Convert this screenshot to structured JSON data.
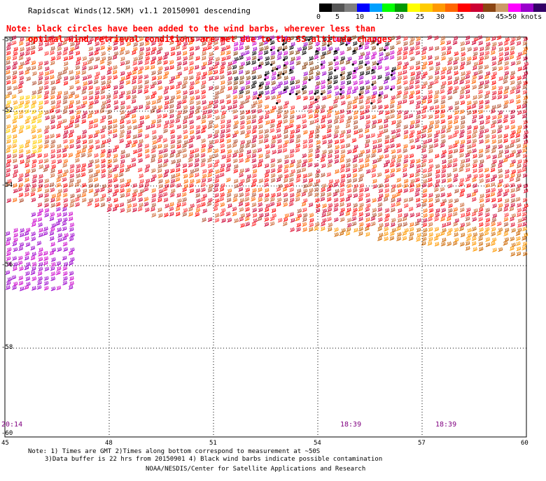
{
  "header": {
    "title": "Rapidscat Winds(12.5KM) v1.1 20150901 descending",
    "note_line1": "Note: black circles have been added to the wind barbs, wherever less than",
    "note_line2": "optimal wind retrieval conditions are met due to the SS altitude changes"
  },
  "color_scale": {
    "colors": [
      "#000000",
      "#555555",
      "#7f7f7f",
      "#0000ff",
      "#00a0ff",
      "#00ff00",
      "#009900",
      "#ffff00",
      "#ffcc00",
      "#ff9900",
      "#ff6600",
      "#ff0000",
      "#cc0033",
      "#8b4513",
      "#cc9966",
      "#ff00ff",
      "#9900cc",
      "#330066"
    ],
    "labels": [
      "0",
      "5",
      "10",
      "15",
      "20",
      "25",
      "30",
      "35",
      "40",
      "45",
      ">50 knots"
    ]
  },
  "axes": {
    "x_ticks": [
      "45",
      "48",
      "51",
      "54",
      "57",
      "60"
    ],
    "y_ticks": [
      "-50",
      "-52",
      "-54",
      "-56",
      "-58",
      "-60"
    ]
  },
  "time_labels": [
    "20:14",
    "18:39",
    "18:39"
  ],
  "footer": {
    "line1": "Note: 1) Times are GMT 2)Times along bottom correspond to measurement at ~50S",
    "line2": "3)Data buffer is 22 hrs from 20150901 4) Black wind barbs indicate possible contamination",
    "line3": "NOAA/NESDIS/Center for Satellite Applications and Research"
  }
}
